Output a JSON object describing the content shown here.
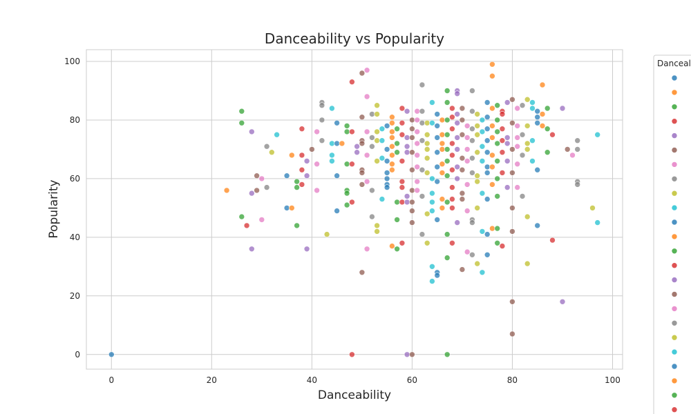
{
  "chart_data": {
    "type": "scatter",
    "title": "Danceability vs Popularity",
    "xlabel": "Danceability",
    "ylabel": "Popularity",
    "xlim": [
      -5,
      102
    ],
    "ylim": [
      -5,
      104
    ],
    "xticks": [
      0,
      20,
      40,
      60,
      80,
      100
    ],
    "yticks": [
      0,
      20,
      40,
      60,
      80,
      100
    ],
    "grid": true,
    "legend": {
      "title": "Danceal",
      "placement": "right, outside plot (clipped)",
      "colors": [
        "#1f77b4",
        "#ff7f0e",
        "#2ca02c",
        "#d62728",
        "#9467bd",
        "#8c564b",
        "#e377c2",
        "#7f7f7f",
        "#bcbd22",
        "#17becf",
        "#1f77b4",
        "#ff7f0e",
        "#2ca02c",
        "#d62728",
        "#9467bd",
        "#8c564b",
        "#e377c2",
        "#7f7f7f",
        "#bcbd22",
        "#17becf",
        "#1f77b4",
        "#ff7f0e",
        "#2ca02c",
        "#d62728"
      ]
    },
    "palette": [
      "#1f77b4",
      "#ff7f0e",
      "#2ca02c",
      "#d62728",
      "#9467bd",
      "#8c564b",
      "#e377c2",
      "#7f7f7f",
      "#bcbd22",
      "#17becf"
    ],
    "points": [
      [
        0,
        0,
        0
      ],
      [
        23,
        56,
        1
      ],
      [
        26,
        83,
        2
      ],
      [
        26,
        79,
        2
      ],
      [
        26,
        47,
        2
      ],
      [
        27,
        44,
        3
      ],
      [
        28,
        76,
        4
      ],
      [
        28,
        55,
        4
      ],
      [
        28,
        36,
        4
      ],
      [
        29,
        61,
        5
      ],
      [
        29,
        56,
        5
      ],
      [
        30,
        60,
        6
      ],
      [
        30,
        46,
        6
      ],
      [
        31,
        71,
        7
      ],
      [
        31,
        57,
        7
      ],
      [
        32,
        69,
        8
      ],
      [
        33,
        75,
        9
      ],
      [
        35,
        61,
        0
      ],
      [
        35,
        50,
        0
      ],
      [
        36,
        68,
        1
      ],
      [
        36,
        50,
        1
      ],
      [
        37,
        59,
        2
      ],
      [
        37,
        57,
        2
      ],
      [
        37,
        44,
        2
      ],
      [
        38,
        77,
        3
      ],
      [
        38,
        68,
        3
      ],
      [
        38,
        63,
        3
      ],
      [
        38,
        58,
        3
      ],
      [
        39,
        66,
        4
      ],
      [
        39,
        61,
        4
      ],
      [
        39,
        36,
        4
      ],
      [
        40,
        70,
        5
      ],
      [
        41,
        76,
        6
      ],
      [
        41,
        65,
        6
      ],
      [
        41,
        56,
        6
      ],
      [
        42,
        86,
        7
      ],
      [
        42,
        85,
        7
      ],
      [
        42,
        80,
        7
      ],
      [
        42,
        73,
        7
      ],
      [
        43,
        41,
        8
      ],
      [
        44,
        84,
        9
      ],
      [
        44,
        72,
        9
      ],
      [
        44,
        68,
        9
      ],
      [
        44,
        66,
        9
      ],
      [
        45,
        79,
        0
      ],
      [
        45,
        72,
        0
      ],
      [
        45,
        61,
        0
      ],
      [
        45,
        49,
        0
      ],
      [
        46,
        72,
        1
      ],
      [
        47,
        78,
        2
      ],
      [
        47,
        76,
        2
      ],
      [
        47,
        65,
        2
      ],
      [
        47,
        56,
        2
      ],
      [
        47,
        55,
        2
      ],
      [
        47,
        51,
        2
      ],
      [
        48,
        93,
        3
      ],
      [
        48,
        76,
        3
      ],
      [
        48,
        65,
        3
      ],
      [
        48,
        52,
        3
      ],
      [
        48,
        0,
        3
      ],
      [
        49,
        71,
        4
      ],
      [
        49,
        69,
        4
      ],
      [
        50,
        96,
        5
      ],
      [
        50,
        81,
        5
      ],
      [
        50,
        73,
        5
      ],
      [
        50,
        72,
        5
      ],
      [
        50,
        63,
        5
      ],
      [
        50,
        62,
        5
      ],
      [
        50,
        58,
        5
      ],
      [
        50,
        28,
        5
      ],
      [
        51,
        97,
        6
      ],
      [
        51,
        88,
        6
      ],
      [
        51,
        76,
        6
      ],
      [
        51,
        68,
        6
      ],
      [
        51,
        59,
        6
      ],
      [
        51,
        36,
        6
      ],
      [
        52,
        82,
        7
      ],
      [
        52,
        74,
        7
      ],
      [
        52,
        71,
        7
      ],
      [
        52,
        56,
        7
      ],
      [
        52,
        47,
        7
      ],
      [
        53,
        85,
        8
      ],
      [
        53,
        82,
        8
      ],
      [
        53,
        76,
        8
      ],
      [
        53,
        73,
        8
      ],
      [
        53,
        66,
        8
      ],
      [
        53,
        44,
        8
      ],
      [
        53,
        42,
        8
      ],
      [
        54,
        77,
        9
      ],
      [
        54,
        73,
        9
      ],
      [
        54,
        67,
        9
      ],
      [
        54,
        53,
        9
      ],
      [
        55,
        78,
        0
      ],
      [
        55,
        70,
        0
      ],
      [
        55,
        66,
        0
      ],
      [
        55,
        62,
        0
      ],
      [
        55,
        60,
        0
      ],
      [
        55,
        58,
        0
      ],
      [
        55,
        57,
        0
      ],
      [
        56,
        81,
        1
      ],
      [
        56,
        79,
        1
      ],
      [
        56,
        76,
        1
      ],
      [
        56,
        74,
        1
      ],
      [
        56,
        71,
        1
      ],
      [
        56,
        68,
        1
      ],
      [
        56,
        65,
        1
      ],
      [
        56,
        63,
        1
      ],
      [
        56,
        37,
        1
      ],
      [
        57,
        77,
        2
      ],
      [
        57,
        72,
        2
      ],
      [
        57,
        69,
        2
      ],
      [
        57,
        52,
        2
      ],
      [
        57,
        46,
        2
      ],
      [
        57,
        36,
        2
      ],
      [
        58,
        84,
        3
      ],
      [
        58,
        79,
        3
      ],
      [
        58,
        75,
        3
      ],
      [
        58,
        66,
        3
      ],
      [
        58,
        59,
        3
      ],
      [
        58,
        57,
        3
      ],
      [
        58,
        52,
        3
      ],
      [
        58,
        38,
        3
      ],
      [
        59,
        83,
        4
      ],
      [
        59,
        74,
        4
      ],
      [
        59,
        71,
        4
      ],
      [
        59,
        69,
        4
      ],
      [
        59,
        54,
        4
      ],
      [
        59,
        52,
        4
      ],
      [
        59,
        0,
        4
      ],
      [
        60,
        80,
        5
      ],
      [
        60,
        77,
        5
      ],
      [
        60,
        74,
        5
      ],
      [
        60,
        69,
        5
      ],
      [
        60,
        63,
        5
      ],
      [
        60,
        56,
        5
      ],
      [
        60,
        52,
        5
      ],
      [
        60,
        49,
        5
      ],
      [
        60,
        45,
        5
      ],
      [
        60,
        0,
        5
      ],
      [
        61,
        83,
        6
      ],
      [
        61,
        80,
        6
      ],
      [
        61,
        76,
        6
      ],
      [
        61,
        72,
        6
      ],
      [
        61,
        68,
        6
      ],
      [
        61,
        64,
        6
      ],
      [
        61,
        59,
        6
      ],
      [
        61,
        56,
        6
      ],
      [
        62,
        92,
        7
      ],
      [
        62,
        83,
        7
      ],
      [
        62,
        79,
        7
      ],
      [
        62,
        73,
        7
      ],
      [
        62,
        63,
        7
      ],
      [
        62,
        54,
        7
      ],
      [
        62,
        41,
        7
      ],
      [
        63,
        79,
        8
      ],
      [
        63,
        75,
        8
      ],
      [
        63,
        72,
        8
      ],
      [
        63,
        70,
        8
      ],
      [
        63,
        67,
        8
      ],
      [
        63,
        62,
        8
      ],
      [
        63,
        48,
        8
      ],
      [
        63,
        38,
        8
      ],
      [
        64,
        86,
        9
      ],
      [
        64,
        79,
        9
      ],
      [
        64,
        60,
        9
      ],
      [
        64,
        55,
        9
      ],
      [
        64,
        52,
        9
      ],
      [
        64,
        49,
        9
      ],
      [
        64,
        30,
        9
      ],
      [
        64,
        25,
        9
      ],
      [
        65,
        82,
        0
      ],
      [
        65,
        78,
        0
      ],
      [
        65,
        74,
        0
      ],
      [
        65,
        69,
        0
      ],
      [
        65,
        64,
        0
      ],
      [
        65,
        59,
        0
      ],
      [
        65,
        46,
        0
      ],
      [
        65,
        28,
        0
      ],
      [
        65,
        27,
        0
      ],
      [
        66,
        80,
        1
      ],
      [
        66,
        75,
        1
      ],
      [
        66,
        72,
        1
      ],
      [
        66,
        70,
        1
      ],
      [
        66,
        65,
        1
      ],
      [
        66,
        62,
        1
      ],
      [
        66,
        53,
        1
      ],
      [
        66,
        50,
        1
      ],
      [
        67,
        90,
        2
      ],
      [
        67,
        86,
        2
      ],
      [
        67,
        80,
        2
      ],
      [
        67,
        75,
        2
      ],
      [
        67,
        70,
        2
      ],
      [
        67,
        66,
        2
      ],
      [
        67,
        61,
        2
      ],
      [
        67,
        52,
        2
      ],
      [
        67,
        41,
        2
      ],
      [
        67,
        33,
        2
      ],
      [
        67,
        0,
        2
      ],
      [
        68,
        84,
        3
      ],
      [
        68,
        81,
        3
      ],
      [
        68,
        77,
        3
      ],
      [
        68,
        72,
        3
      ],
      [
        68,
        68,
        3
      ],
      [
        68,
        63,
        3
      ],
      [
        68,
        57,
        3
      ],
      [
        68,
        53,
        3
      ],
      [
        68,
        50,
        3
      ],
      [
        68,
        38,
        3
      ],
      [
        69,
        90,
        4
      ],
      [
        69,
        89,
        4
      ],
      [
        69,
        82,
        4
      ],
      [
        69,
        79,
        4
      ],
      [
        69,
        74,
        4
      ],
      [
        69,
        70,
        4
      ],
      [
        69,
        64,
        4
      ],
      [
        69,
        60,
        4
      ],
      [
        69,
        45,
        4
      ],
      [
        70,
        84,
        5
      ],
      [
        70,
        80,
        5
      ],
      [
        70,
        75,
        5
      ],
      [
        70,
        67,
        5
      ],
      [
        70,
        63,
        5
      ],
      [
        70,
        55,
        5
      ],
      [
        70,
        53,
        5
      ],
      [
        70,
        29,
        5
      ],
      [
        71,
        78,
        6
      ],
      [
        71,
        74,
        6
      ],
      [
        71,
        70,
        6
      ],
      [
        71,
        66,
        6
      ],
      [
        71,
        58,
        6
      ],
      [
        71,
        49,
        6
      ],
      [
        71,
        35,
        6
      ],
      [
        72,
        90,
        7
      ],
      [
        72,
        83,
        7
      ],
      [
        72,
        77,
        7
      ],
      [
        72,
        73,
        7
      ],
      [
        72,
        67,
        7
      ],
      [
        72,
        62,
        7
      ],
      [
        72,
        46,
        7
      ],
      [
        72,
        45,
        7
      ],
      [
        72,
        34,
        7
      ],
      [
        73,
        82,
        8
      ],
      [
        73,
        78,
        8
      ],
      [
        73,
        75,
        8
      ],
      [
        73,
        69,
        8
      ],
      [
        73,
        61,
        8
      ],
      [
        73,
        59,
        8
      ],
      [
        73,
        50,
        8
      ],
      [
        73,
        31,
        8
      ],
      [
        74,
        80,
        9
      ],
      [
        74,
        76,
        9
      ],
      [
        74,
        71,
        9
      ],
      [
        74,
        66,
        9
      ],
      [
        74,
        55,
        9
      ],
      [
        74,
        42,
        9
      ],
      [
        74,
        28,
        9
      ],
      [
        75,
        86,
        0
      ],
      [
        75,
        81,
        0
      ],
      [
        75,
        77,
        0
      ],
      [
        75,
        73,
        0
      ],
      [
        75,
        69,
        0
      ],
      [
        75,
        64,
        0
      ],
      [
        75,
        62,
        0
      ],
      [
        75,
        53,
        0
      ],
      [
        75,
        41,
        0
      ],
      [
        75,
        34,
        0
      ],
      [
        76,
        99,
        1
      ],
      [
        76,
        95,
        1
      ],
      [
        76,
        84,
        1
      ],
      [
        76,
        78,
        1
      ],
      [
        76,
        74,
        1
      ],
      [
        76,
        68,
        1
      ],
      [
        76,
        64,
        1
      ],
      [
        76,
        58,
        1
      ],
      [
        76,
        43,
        1
      ],
      [
        77,
        85,
        2
      ],
      [
        77,
        80,
        2
      ],
      [
        77,
        76,
        2
      ],
      [
        77,
        72,
        2
      ],
      [
        77,
        66,
        2
      ],
      [
        77,
        60,
        2
      ],
      [
        77,
        54,
        2
      ],
      [
        77,
        43,
        2
      ],
      [
        77,
        38,
        2
      ],
      [
        78,
        83,
        3
      ],
      [
        78,
        82,
        3
      ],
      [
        78,
        77,
        3
      ],
      [
        78,
        73,
        3
      ],
      [
        78,
        69,
        3
      ],
      [
        78,
        62,
        3
      ],
      [
        78,
        37,
        3
      ],
      [
        79,
        86,
        4
      ],
      [
        79,
        74,
        4
      ],
      [
        79,
        72,
        4
      ],
      [
        79,
        66,
        4
      ],
      [
        79,
        57,
        4
      ],
      [
        80,
        87,
        5
      ],
      [
        80,
        79,
        5
      ],
      [
        80,
        70,
        5
      ],
      [
        80,
        62,
        5
      ],
      [
        80,
        50,
        5
      ],
      [
        80,
        42,
        5
      ],
      [
        80,
        18,
        5
      ],
      [
        80,
        7,
        5
      ],
      [
        81,
        84,
        6
      ],
      [
        81,
        78,
        6
      ],
      [
        81,
        74,
        6
      ],
      [
        81,
        71,
        6
      ],
      [
        81,
        65,
        6
      ],
      [
        81,
        57,
        6
      ],
      [
        82,
        85,
        7
      ],
      [
        82,
        75,
        7
      ],
      [
        82,
        68,
        7
      ],
      [
        82,
        54,
        7
      ],
      [
        83,
        87,
        8
      ],
      [
        83,
        78,
        8
      ],
      [
        83,
        72,
        8
      ],
      [
        83,
        70,
        8
      ],
      [
        83,
        47,
        8
      ],
      [
        83,
        31,
        8
      ],
      [
        84,
        86,
        9
      ],
      [
        84,
        84,
        9
      ],
      [
        84,
        73,
        9
      ],
      [
        84,
        66,
        9
      ],
      [
        85,
        83,
        0
      ],
      [
        85,
        81,
        0
      ],
      [
        85,
        79,
        0
      ],
      [
        85,
        63,
        0
      ],
      [
        85,
        44,
        0
      ],
      [
        86,
        92,
        1
      ],
      [
        86,
        82,
        1
      ],
      [
        86,
        78,
        1
      ],
      [
        87,
        84,
        2
      ],
      [
        87,
        77,
        2
      ],
      [
        87,
        69,
        2
      ],
      [
        88,
        75,
        3
      ],
      [
        88,
        39,
        3
      ],
      [
        90,
        84,
        4
      ],
      [
        90,
        18,
        4
      ],
      [
        91,
        70,
        5
      ],
      [
        92,
        68,
        6
      ],
      [
        93,
        73,
        7
      ],
      [
        93,
        70,
        7
      ],
      [
        93,
        59,
        7
      ],
      [
        93,
        58,
        7
      ],
      [
        96,
        50,
        8
      ],
      [
        97,
        75,
        9
      ],
      [
        97,
        45,
        9
      ]
    ]
  }
}
